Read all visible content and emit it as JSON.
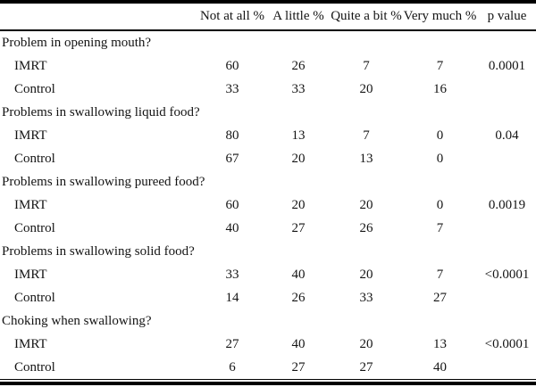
{
  "table": {
    "columns": [
      "Not at all %",
      "A little %",
      "Quite a bit %",
      "Very much %",
      "p value"
    ],
    "groups": [
      {
        "question": "Problem in opening mouth?",
        "rows": [
          {
            "label": "IMRT",
            "values": [
              "60",
              "26",
              "7",
              "7"
            ],
            "p": "0.0001"
          },
          {
            "label": "Control",
            "values": [
              "33",
              "33",
              "20",
              "16"
            ],
            "p": ""
          }
        ]
      },
      {
        "question": "Problems in swallowing liquid food?",
        "rows": [
          {
            "label": "IMRT",
            "values": [
              "80",
              "13",
              "7",
              "0"
            ],
            "p": "0.04"
          },
          {
            "label": "Control",
            "values": [
              "67",
              "20",
              "13",
              "0"
            ],
            "p": ""
          }
        ]
      },
      {
        "question": "Problems in swallowing pureed food?",
        "rows": [
          {
            "label": "IMRT",
            "values": [
              "60",
              "20",
              "20",
              "0"
            ],
            "p": "0.0019"
          },
          {
            "label": "Control",
            "values": [
              "40",
              "27",
              "26",
              "7"
            ],
            "p": ""
          }
        ]
      },
      {
        "question": "Problems in swallowing solid food?",
        "rows": [
          {
            "label": "IMRT",
            "values": [
              "33",
              "40",
              "20",
              "7"
            ],
            "p": "<0.0001"
          },
          {
            "label": "Control",
            "values": [
              "14",
              "26",
              "33",
              "27"
            ],
            "p": ""
          }
        ]
      },
      {
        "question": "Choking when swallowing?",
        "rows": [
          {
            "label": "IMRT",
            "values": [
              "27",
              "40",
              "20",
              "13"
            ],
            "p": "<0.0001"
          },
          {
            "label": "Control",
            "values": [
              "6",
              "27",
              "27",
              "40"
            ],
            "p": ""
          }
        ]
      }
    ]
  }
}
